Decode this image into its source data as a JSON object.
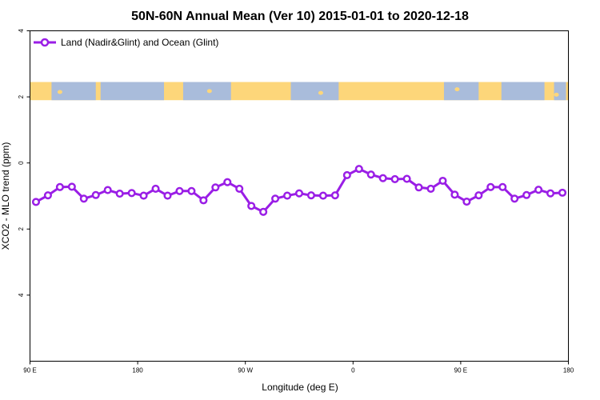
{
  "chart_data": {
    "type": "line",
    "title": "50N-60N Annual Mean (Ver 10)   2015-01-01 to 2020-12-18",
    "xlabel": "Longitude (deg E)",
    "ylabel": "XCO2 - MLO trend (ppm)",
    "xlim": [
      90,
      540
    ],
    "ylim": [
      -6,
      4
    ],
    "x_ticks": [
      {
        "value": 90,
        "label": "90 E"
      },
      {
        "value": 180,
        "label": "180"
      },
      {
        "value": 270,
        "label": "90 W"
      },
      {
        "value": 360,
        "label": "0"
      },
      {
        "value": 450,
        "label": "90 E"
      },
      {
        "value": 540,
        "label": "180"
      }
    ],
    "y_ticks": [
      {
        "value": 4,
        "label": "4"
      },
      {
        "value": 2,
        "label": "2"
      },
      {
        "value": 0,
        "label": "0"
      },
      {
        "value": -2,
        "label": "2"
      },
      {
        "value": -4,
        "label": "4"
      }
    ],
    "legend_position": "top-left",
    "series": [
      {
        "name": "Land (Nadir&Glint) and Ocean (Glint)",
        "color": "#9a1ee6",
        "marker": "open-circle",
        "x": [
          95,
          105,
          115,
          125,
          135,
          145,
          155,
          165,
          175,
          185,
          195,
          205,
          215,
          225,
          235,
          245,
          255,
          265,
          275,
          285,
          295,
          305,
          315,
          325,
          335,
          345,
          355,
          365,
          375,
          385,
          395,
          405,
          415,
          425,
          435,
          445,
          455,
          465,
          475,
          485,
          495,
          505,
          515,
          525,
          535
        ],
        "values": [
          -1.18,
          -0.98,
          -0.73,
          -0.72,
          -1.08,
          -0.97,
          -0.82,
          -0.93,
          -0.91,
          -0.99,
          -0.78,
          -0.99,
          -0.85,
          -0.85,
          -1.13,
          -0.74,
          -0.58,
          -0.78,
          -1.3,
          -1.48,
          -1.08,
          -0.99,
          -0.92,
          -0.98,
          -0.99,
          -0.98,
          -0.37,
          -0.18,
          -0.35,
          -0.46,
          -0.49,
          -0.48,
          -0.74,
          -0.78,
          -0.54,
          -0.96,
          -1.17,
          -0.98,
          -0.73,
          -0.73,
          -1.08,
          -0.97,
          -0.81,
          -0.92,
          -0.9
        ]
      }
    ],
    "map_band": {
      "description_color_land": "#fdd67a",
      "description_color_ocean": "#a9bcdb",
      "y_range": [
        1.9,
        2.45
      ]
    }
  }
}
